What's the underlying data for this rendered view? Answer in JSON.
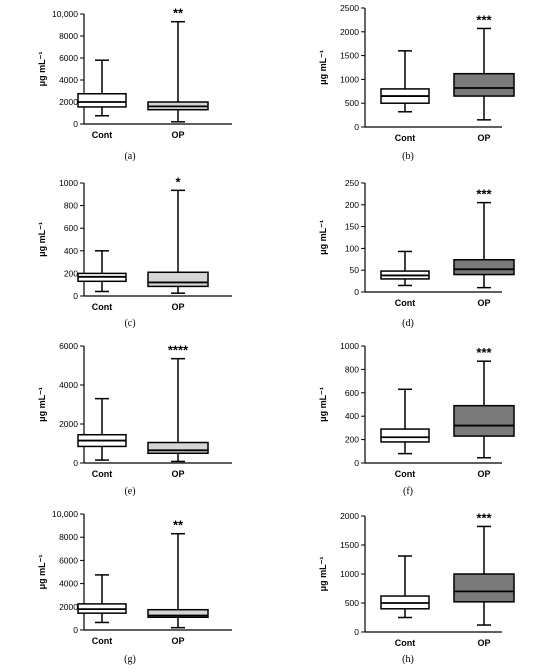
{
  "colors": {
    "cont_fill": "#ffffff",
    "light_fill": "#d6d6d6",
    "dark_fill": "#7a7a7a",
    "stroke": "#000000"
  },
  "chart_data": [
    {
      "type": "box",
      "panel_label": "(a)",
      "ylabel": "μg mL⁻¹",
      "ylim": [
        0,
        10000
      ],
      "yticks": [
        0,
        2000,
        4000,
        6000,
        8000,
        10000
      ],
      "ytick_labels": [
        "0",
        "2000",
        "4000",
        "6000",
        "8000",
        "10,000"
      ],
      "significance": "**",
      "op_fill": "light",
      "categories": [
        "Cont",
        "OP"
      ],
      "boxes": [
        {
          "min": 750,
          "q1": 1550,
          "median": 2000,
          "q3": 2750,
          "max": 5800
        },
        {
          "min": 200,
          "q1": 1300,
          "median": 1600,
          "q3": 2000,
          "max": 9300
        }
      ]
    },
    {
      "type": "box",
      "panel_label": "(b)",
      "ylabel": "μg mL⁻¹",
      "ylim": [
        0,
        2500
      ],
      "yticks": [
        0,
        500,
        1000,
        1500,
        2000,
        2500
      ],
      "ytick_labels": [
        "0",
        "500",
        "1000",
        "1500",
        "2000",
        "2500"
      ],
      "significance": "***",
      "op_fill": "dark",
      "categories": [
        "Cont",
        "OP"
      ],
      "boxes": [
        {
          "min": 320,
          "q1": 500,
          "median": 650,
          "q3": 800,
          "max": 1600
        },
        {
          "min": 150,
          "q1": 650,
          "median": 820,
          "q3": 1120,
          "max": 2070
        }
      ]
    },
    {
      "type": "box",
      "panel_label": "(c)",
      "ylabel": "μg mL⁻¹",
      "ylim": [
        0,
        1000
      ],
      "yticks": [
        0,
        200,
        400,
        600,
        800,
        1000
      ],
      "ytick_labels": [
        "0",
        "200",
        "400",
        "600",
        "800",
        "1000"
      ],
      "significance": "*",
      "op_fill": "light",
      "categories": [
        "Cont",
        "OP"
      ],
      "boxes": [
        {
          "min": 40,
          "q1": 130,
          "median": 170,
          "q3": 200,
          "max": 400
        },
        {
          "min": 25,
          "q1": 85,
          "median": 120,
          "q3": 210,
          "max": 935
        }
      ]
    },
    {
      "type": "box",
      "panel_label": "(d)",
      "ylabel": "μg mL⁻¹",
      "ylim": [
        0,
        250
      ],
      "yticks": [
        0,
        50,
        100,
        150,
        200,
        250
      ],
      "ytick_labels": [
        "0",
        "50",
        "100",
        "150",
        "200",
        "250"
      ],
      "significance": "***",
      "op_fill": "dark",
      "categories": [
        "Cont",
        "OP"
      ],
      "boxes": [
        {
          "min": 15,
          "q1": 30,
          "median": 38,
          "q3": 48,
          "max": 93
        },
        {
          "min": 10,
          "q1": 40,
          "median": 52,
          "q3": 74,
          "max": 205
        }
      ]
    },
    {
      "type": "box",
      "panel_label": "(e)",
      "ylabel": "μg mL⁻¹",
      "ylim": [
        0,
        6000
      ],
      "yticks": [
        0,
        2000,
        4000,
        6000
      ],
      "ytick_labels": [
        "0",
        "2000",
        "4000",
        "6000"
      ],
      "significance": "****",
      "op_fill": "light",
      "categories": [
        "Cont",
        "OP"
      ],
      "boxes": [
        {
          "min": 150,
          "q1": 850,
          "median": 1150,
          "q3": 1450,
          "max": 3300
        },
        {
          "min": 80,
          "q1": 500,
          "median": 650,
          "q3": 1050,
          "max": 5350
        }
      ]
    },
    {
      "type": "box",
      "panel_label": "(f)",
      "ylabel": "μg mL⁻¹",
      "ylim": [
        0,
        1000
      ],
      "yticks": [
        0,
        200,
        400,
        600,
        800,
        1000
      ],
      "ytick_labels": [
        "0",
        "200",
        "400",
        "600",
        "800",
        "1000"
      ],
      "significance": "***",
      "op_fill": "dark",
      "categories": [
        "Cont",
        "OP"
      ],
      "boxes": [
        {
          "min": 80,
          "q1": 180,
          "median": 220,
          "q3": 290,
          "max": 630
        },
        {
          "min": 45,
          "q1": 230,
          "median": 320,
          "q3": 490,
          "max": 870
        }
      ]
    },
    {
      "type": "box",
      "panel_label": "(g)",
      "ylabel": "μg mL⁻¹",
      "ylim": [
        0,
        10000
      ],
      "yticks": [
        0,
        2000,
        4000,
        6000,
        8000,
        10000
      ],
      "ytick_labels": [
        "0",
        "2000",
        "4000",
        "6000",
        "8000",
        "10,000"
      ],
      "significance": "**",
      "op_fill": "light",
      "categories": [
        "Cont",
        "OP"
      ],
      "boxes": [
        {
          "min": 650,
          "q1": 1450,
          "median": 1800,
          "q3": 2250,
          "max": 4750
        },
        {
          "min": 200,
          "q1": 1100,
          "median": 1250,
          "q3": 1750,
          "max": 8300
        }
      ]
    },
    {
      "type": "box",
      "panel_label": "(h)",
      "ylabel": "μg mL⁻¹",
      "ylim": [
        0,
        2000
      ],
      "yticks": [
        0,
        500,
        1000,
        1500,
        2000
      ],
      "ytick_labels": [
        "0",
        "500",
        "1000",
        "1500",
        "2000"
      ],
      "significance": "***",
      "op_fill": "dark",
      "categories": [
        "Cont",
        "OP"
      ],
      "boxes": [
        {
          "min": 250,
          "q1": 400,
          "median": 500,
          "q3": 620,
          "max": 1310
        },
        {
          "min": 120,
          "q1": 520,
          "median": 700,
          "q3": 1000,
          "max": 1820
        }
      ]
    }
  ]
}
